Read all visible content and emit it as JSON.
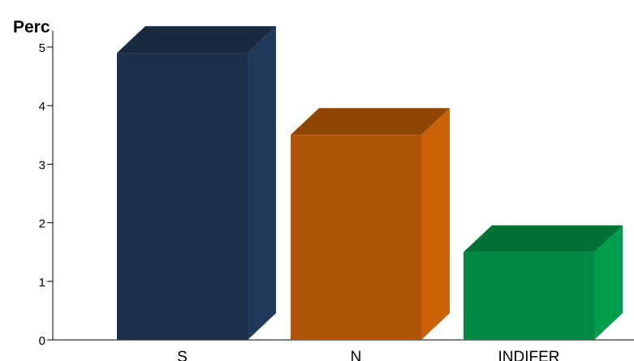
{
  "chart_data": {
    "type": "bar",
    "title": "Perc",
    "categories": [
      "S",
      "N",
      "INDIFER"
    ],
    "values": [
      4.9,
      3.5,
      1.5
    ],
    "ylim": [
      0,
      5
    ],
    "yticks": [
      "0",
      "1",
      "2",
      "3",
      "4",
      "5"
    ],
    "grid": false,
    "style": "3d",
    "colors": [
      {
        "front": "#1c3049",
        "side": "#213a5c",
        "top": "#182940"
      },
      {
        "front": "#b05507",
        "side": "#cc6208",
        "top": "#8f4606"
      },
      {
        "front": "#008a42",
        "side": "#009e4c",
        "top": "#007035"
      }
    ]
  }
}
